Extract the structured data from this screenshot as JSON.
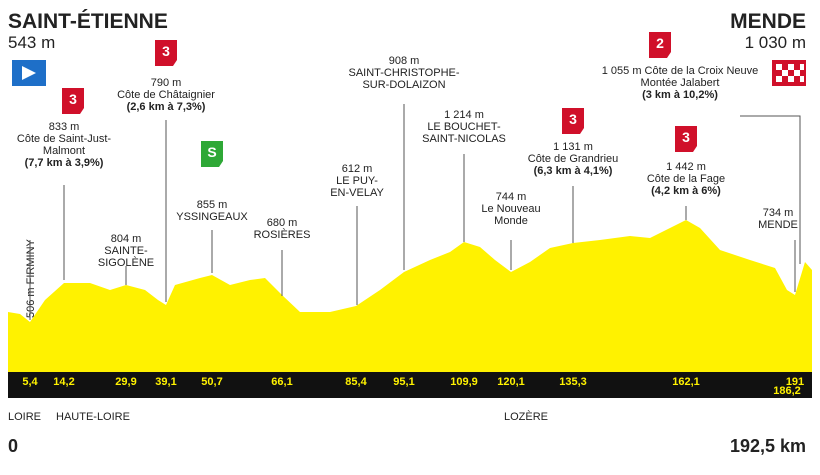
{
  "header": {
    "start": {
      "name": "SAINT-ÉTIENNE",
      "altitude": "543 m"
    },
    "finish": {
      "name": "MENDE",
      "altitude": "1 030 m"
    }
  },
  "points": [
    {
      "lines": [
        "506 m FIRMINY"
      ]
    },
    {
      "badge": "3",
      "lines": [
        "833 m",
        "Côte de Saint-Just-",
        "Malmont",
        "(7,7 km à 3,9%)"
      ]
    },
    {
      "badge": "3",
      "lines": [
        "790 m",
        "Côte de Châtaignier",
        "(2,6 km à 7,3%)"
      ]
    },
    {
      "lines": [
        "804 m",
        "SAINTE-",
        "SIGOLÈNE"
      ]
    },
    {
      "badge": "S",
      "lines": [
        "855 m",
        "YSSINGEAUX"
      ]
    },
    {
      "lines": [
        "680 m",
        "ROSIÈRES"
      ]
    },
    {
      "lines": [
        "612 m",
        "LE PUY-",
        "EN-VELAY"
      ]
    },
    {
      "lines": [
        "908 m",
        "SAINT-CHRISTOPHE-",
        "SUR-DOLAIZON"
      ]
    },
    {
      "lines": [
        "1 214 m",
        "LE BOUCHET-",
        "SAINT-NICOLAS"
      ]
    },
    {
      "lines": [
        "744 m",
        "Le Nouveau",
        "Monde"
      ]
    },
    {
      "badge": "3",
      "lines": [
        "1 131 m",
        "Côte de Grandrieu",
        "(6,3 km à 4,1%)"
      ]
    },
    {
      "badge": "3",
      "lines": [
        "1 442 m",
        "Côte de la Fage",
        "(4,2 km à 6%)"
      ]
    },
    {
      "lines": [
        "734 m",
        "MENDE"
      ]
    },
    {
      "badge": "2",
      "lines": [
        "1 055 m Côte de la Croix Neuve",
        "Montée Jalabert",
        "(3 km à 10,2%)"
      ]
    }
  ],
  "km_markers": [
    "5,4",
    "14,2",
    "29,9",
    "39,1",
    "50,7",
    "66,1",
    "85,4",
    "95,1",
    "109,9",
    "120,1",
    "135,3",
    "162,1",
    "191",
    "186,2"
  ],
  "regions": [
    "LOIRE",
    "HAUTE-LOIRE",
    "LOZÈRE"
  ],
  "footer": {
    "start": "0",
    "end": "192,5 km"
  }
}
